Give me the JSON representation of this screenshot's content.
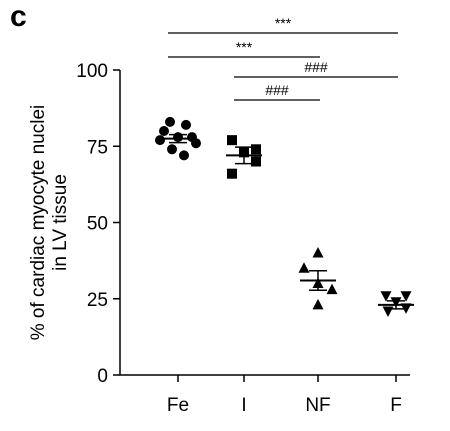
{
  "panel_label": "c",
  "chart_data": {
    "type": "scatter",
    "categories": [
      "Fe",
      "I",
      "NF",
      "F"
    ],
    "ylabel_lines": [
      "% of cardiac myocyte nuclei",
      "in LV tissue"
    ],
    "ylim": [
      0,
      100
    ],
    "yticks": [
      0,
      25,
      50,
      75,
      100
    ],
    "marker_colors": "#000000",
    "groups": [
      {
        "category": "Fe",
        "marker": "circle",
        "mean": 77.5,
        "sem": 1.3,
        "points": [
          83,
          82,
          80,
          78,
          78,
          77,
          76,
          74,
          72
        ]
      },
      {
        "category": "I",
        "marker": "square",
        "mean": 72,
        "sem": 2.7,
        "points": [
          77,
          74,
          73,
          70,
          66
        ]
      },
      {
        "category": "NF",
        "marker": "triangle",
        "mean": 31,
        "sem": 3.2,
        "points": [
          40,
          35,
          30,
          28,
          23
        ]
      },
      {
        "category": "F",
        "marker": "triangle-down",
        "mean": 23,
        "sem": 1.3,
        "points": [
          26,
          26,
          24,
          22,
          21
        ]
      }
    ],
    "significance": [
      {
        "from": "Fe",
        "to": "F",
        "label": "***"
      },
      {
        "from": "Fe",
        "to": "NF",
        "label": "***"
      },
      {
        "from": "I",
        "to": "F",
        "label": "###"
      },
      {
        "from": "I",
        "to": "NF",
        "label": "###"
      }
    ]
  }
}
